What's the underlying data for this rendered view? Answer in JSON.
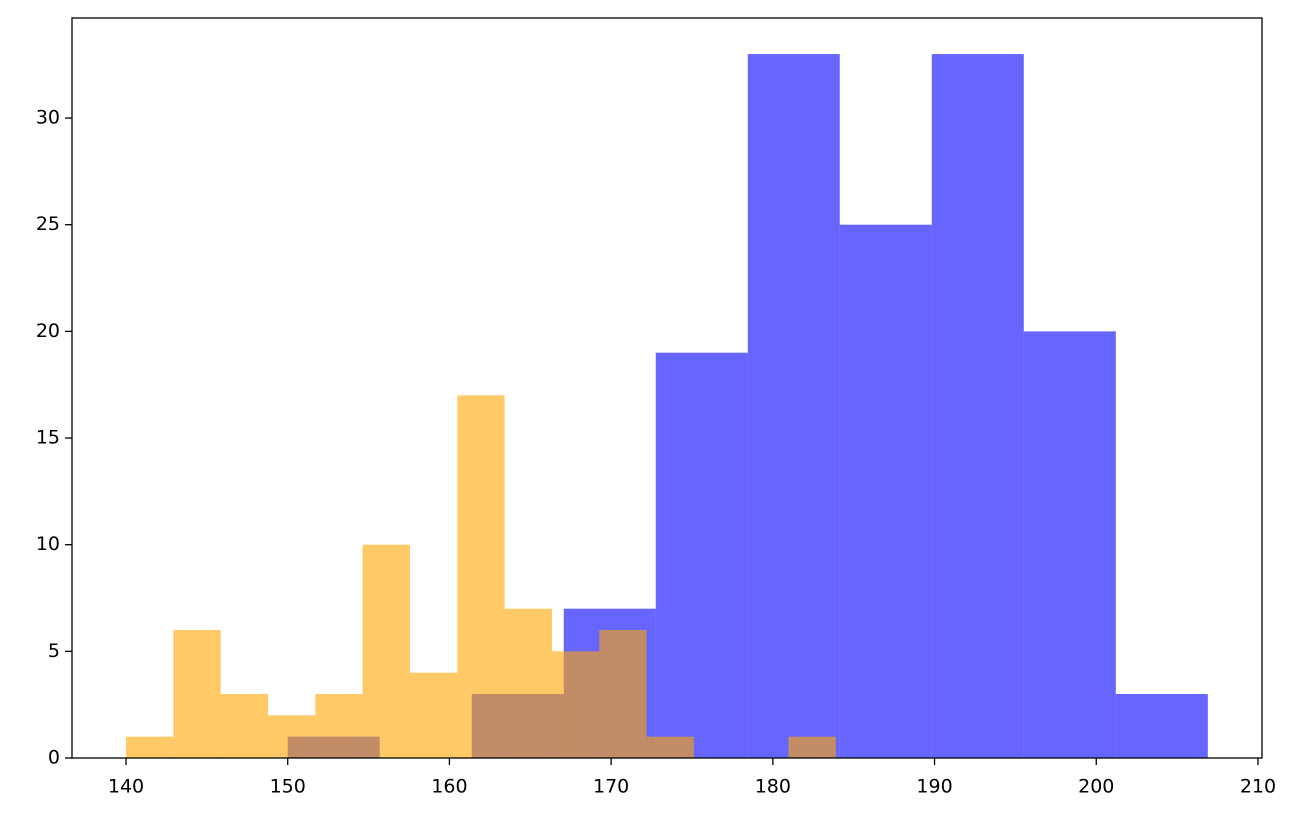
{
  "chart_data": {
    "type": "histogram",
    "series": [
      {
        "color": "#0000ff",
        "alpha": 0.6,
        "bins": [
          150,
          155.69,
          161.38,
          167.07,
          172.76,
          178.45,
          184.14,
          189.83,
          195.52,
          201.21,
          206.9
        ],
        "values": [
          1,
          0,
          3,
          7,
          19,
          33,
          25,
          33,
          20,
          3
        ]
      },
      {
        "color": "#ffa500",
        "alpha": 0.6,
        "bins": [
          140,
          142.93,
          145.85,
          148.78,
          151.71,
          154.63,
          157.56,
          160.49,
          163.41,
          166.34,
          169.27,
          172.19,
          175.12,
          178.05,
          180.97,
          183.9
        ],
        "values": [
          1,
          6,
          3,
          2,
          3,
          10,
          4,
          17,
          7,
          5,
          6,
          1,
          0,
          0,
          1
        ]
      }
    ],
    "xlim": [
      136.66,
      210.25
    ],
    "ylim": [
      0,
      34.69
    ],
    "xticks": [
      140,
      150,
      160,
      170,
      180,
      190,
      200,
      210
    ],
    "yticks": [
      0,
      5,
      10,
      15,
      20,
      25,
      30
    ],
    "grid": false
  }
}
